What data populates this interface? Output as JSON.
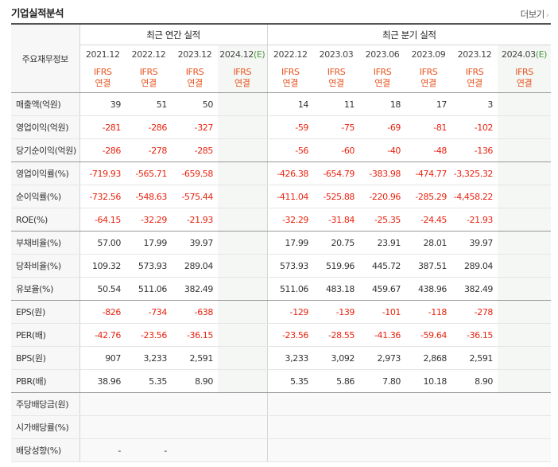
{
  "title": "기업실적분석",
  "more_label": "더보기",
  "header": {
    "row_label": "주요재무정보",
    "annual_group": "최근 연간 실적",
    "quarter_group": "최근 분기 실적",
    "annual_periods": [
      "2021.12",
      "2022.12",
      "2023.12"
    ],
    "annual_est_period": "2024.12",
    "quarter_periods": [
      "2022.12",
      "2023.03",
      "2023.06",
      "2023.09",
      "2023.12"
    ],
    "quarter_est_period": "2024.03",
    "est_mark": "(E)",
    "ifrs_line1": "IFRS",
    "ifrs_line2": "연결"
  },
  "rows": [
    {
      "label": "매출액(억원)",
      "annual": [
        "39",
        "51",
        "50"
      ],
      "quarter": [
        "14",
        "11",
        "18",
        "17",
        "3"
      ]
    },
    {
      "label": "영업이익(억원)",
      "annual": [
        "-281",
        "-286",
        "-327"
      ],
      "quarter": [
        "-59",
        "-75",
        "-69",
        "-81",
        "-102"
      ]
    },
    {
      "label": "당기순이익(억원)",
      "annual": [
        "-286",
        "-278",
        "-285"
      ],
      "quarter": [
        "-56",
        "-60",
        "-40",
        "-48",
        "-136"
      ]
    },
    {
      "label": "영업이익률(%)",
      "annual": [
        "-719.93",
        "-565.71",
        "-659.58"
      ],
      "quarter": [
        "-426.38",
        "-654.79",
        "-383.98",
        "-474.77",
        "-3,325.32"
      ]
    },
    {
      "label": "순이익률(%)",
      "annual": [
        "-732.56",
        "-548.63",
        "-575.44"
      ],
      "quarter": [
        "-411.04",
        "-525.88",
        "-220.96",
        "-285.29",
        "-4,458.22"
      ]
    },
    {
      "label": "ROE(%)",
      "annual": [
        "-64.15",
        "-32.29",
        "-21.93"
      ],
      "quarter": [
        "-32.29",
        "-31.84",
        "-25.35",
        "-24.45",
        "-21.93"
      ]
    },
    {
      "label": "부채비율(%)",
      "annual": [
        "57.00",
        "17.99",
        "39.97"
      ],
      "quarter": [
        "17.99",
        "20.75",
        "23.91",
        "28.01",
        "39.97"
      ]
    },
    {
      "label": "당좌비율(%)",
      "annual": [
        "109.32",
        "573.93",
        "289.04"
      ],
      "quarter": [
        "573.93",
        "519.96",
        "445.72",
        "387.51",
        "289.04"
      ]
    },
    {
      "label": "유보율(%)",
      "annual": [
        "50.54",
        "511.06",
        "382.49"
      ],
      "quarter": [
        "511.06",
        "483.18",
        "459.67",
        "438.96",
        "382.49"
      ]
    },
    {
      "label": "EPS(원)",
      "annual": [
        "-826",
        "-734",
        "-638"
      ],
      "quarter": [
        "-129",
        "-139",
        "-101",
        "-118",
        "-278"
      ]
    },
    {
      "label": "PER(배)",
      "annual": [
        "-42.76",
        "-23.56",
        "-36.15"
      ],
      "quarter": [
        "-23.56",
        "-28.55",
        "-41.36",
        "-59.64",
        "-36.15"
      ]
    },
    {
      "label": "BPS(원)",
      "annual": [
        "907",
        "3,233",
        "2,591"
      ],
      "quarter": [
        "3,233",
        "3,092",
        "2,973",
        "2,868",
        "2,591"
      ]
    },
    {
      "label": "PBR(배)",
      "annual": [
        "38.96",
        "5.35",
        "8.90"
      ],
      "quarter": [
        "5.35",
        "5.86",
        "7.80",
        "10.18",
        "8.90"
      ]
    },
    {
      "label": "주당배당금(원)",
      "annual": [
        "",
        "",
        ""
      ],
      "quarter": [
        "",
        "",
        "",
        "",
        ""
      ]
    },
    {
      "label": "시가배당률(%)",
      "annual": [
        "",
        "",
        ""
      ],
      "quarter": [
        "",
        "",
        "",
        "",
        ""
      ]
    },
    {
      "label": "배당성향(%)",
      "annual": [
        "-",
        "-",
        ""
      ],
      "quarter": [
        "",
        "",
        "",
        "",
        ""
      ]
    }
  ],
  "colors": {
    "negative": "#e8230f",
    "ifrs": "#e8531f",
    "estimate_mark": "#4a9a3f"
  }
}
